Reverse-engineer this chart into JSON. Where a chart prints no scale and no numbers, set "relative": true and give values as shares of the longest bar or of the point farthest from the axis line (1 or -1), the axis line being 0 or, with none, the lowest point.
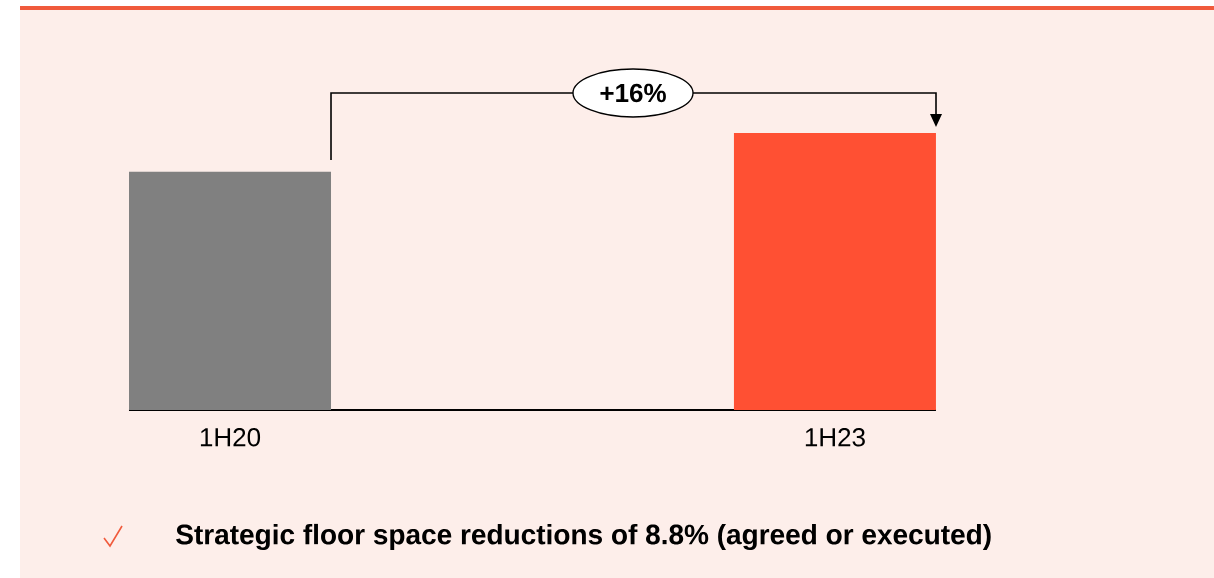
{
  "chart_data": {
    "type": "bar",
    "categories": [
      "1H20",
      "1H23"
    ],
    "values": [
      0.86,
      1
    ],
    "colors": [
      "#808080",
      "#ff5033"
    ],
    "relative": true,
    "annotations": [
      "+16%",
      "Strategic floor space reductions of 8.8% (agreed or executed)"
    ]
  }
}
